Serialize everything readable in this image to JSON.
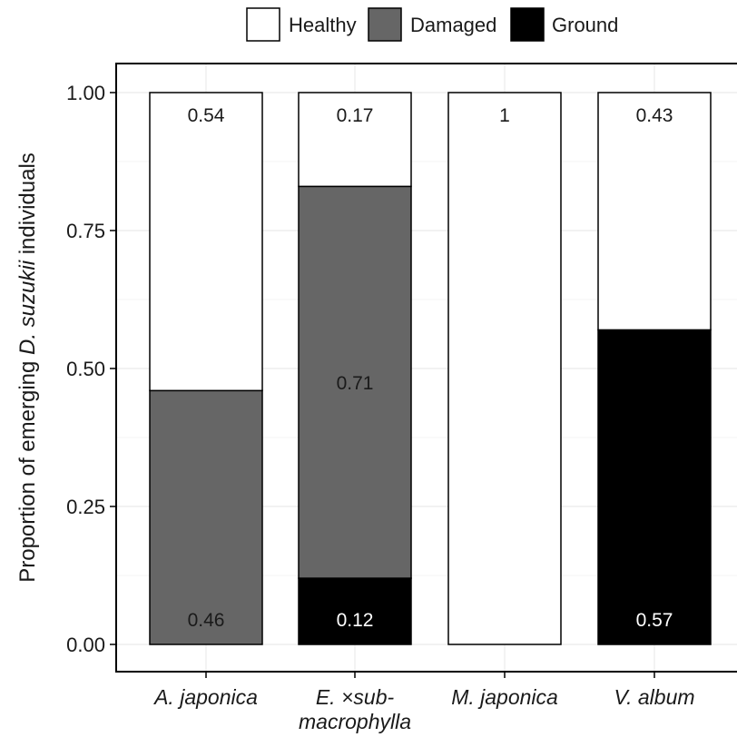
{
  "chart_data": {
    "type": "bar",
    "stacked": true,
    "title": "",
    "xlabel": "",
    "ylabel": {
      "prefix": "Proportion of emerging ",
      "italic": "D. suzukii",
      "suffix": " individuals"
    },
    "ylim": [
      0,
      1
    ],
    "yticks": [
      "0.00",
      "0.25",
      "0.50",
      "0.75",
      "1.00"
    ],
    "ytick_values": [
      0,
      0.25,
      0.5,
      0.75,
      1
    ],
    "categories": [
      [
        "A. japonica"
      ],
      [
        "E. ×sub-",
        "macrophylla"
      ],
      [
        "M. japonica"
      ],
      [
        "V. album"
      ]
    ],
    "series": [
      {
        "name": "Ground",
        "color": "#000000",
        "label_color": "#ffffff",
        "values": [
          0,
          0.12,
          0,
          0.57
        ],
        "labels": [
          "",
          "0.12",
          "",
          "0.57"
        ]
      },
      {
        "name": "Damaged",
        "color": "#666666",
        "label_color": "#1a1a1a",
        "values": [
          0.46,
          0.71,
          0,
          0
        ],
        "labels": [
          "0.46",
          "0.71",
          "",
          ""
        ]
      },
      {
        "name": "Healthy",
        "color": "#ffffff",
        "label_color": "#1a1a1a",
        "values": [
          0.54,
          0.17,
          1,
          0.43
        ],
        "labels": [
          "0.54",
          "0.17",
          "1",
          "0.43"
        ]
      }
    ],
    "legend": {
      "position": "top",
      "order": [
        "Healthy",
        "Damaged",
        "Ground"
      ]
    },
    "grid": true,
    "colors": {
      "grid": "#ebebeb",
      "border": "#000000",
      "text": "#1a1a1a"
    }
  }
}
